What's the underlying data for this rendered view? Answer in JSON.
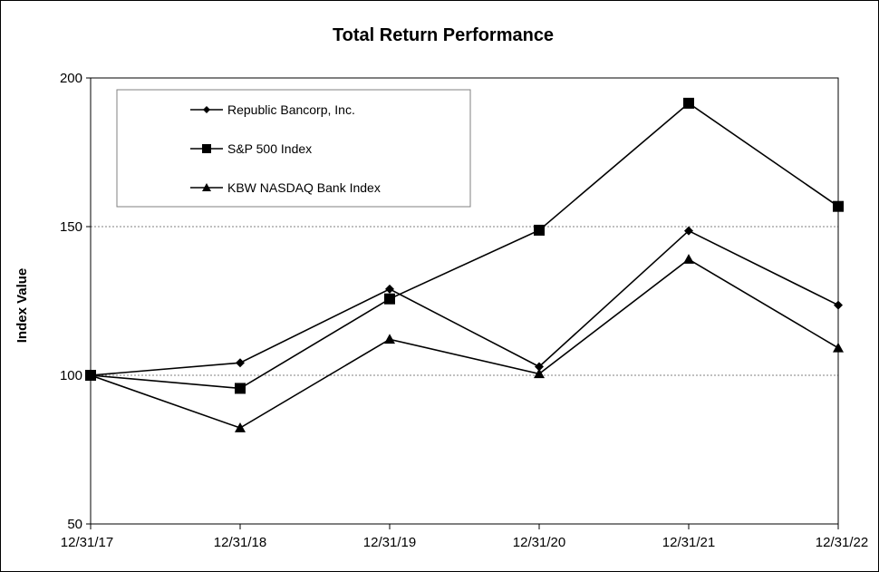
{
  "chart_data": {
    "type": "line",
    "title": "Total Return Performance",
    "xlabel": "",
    "ylabel": "Index Value",
    "categories": [
      "12/31/17",
      "12/31/18",
      "12/31/19",
      "12/31/20",
      "12/31/21",
      "12/31/22"
    ],
    "ylim": [
      50,
      200
    ],
    "yticks": [
      "50",
      "100",
      "150",
      "200"
    ],
    "grid": "horizontal dashed at 150",
    "legend_position": "top-left",
    "series": [
      {
        "name": "Republic Bancorp, Inc.",
        "marker": "diamond",
        "values": [
          100,
          104.2,
          129.0,
          102.9,
          148.6,
          123.6
        ]
      },
      {
        "name": "S&P 500 Index",
        "marker": "square",
        "values": [
          100,
          95.6,
          125.7,
          148.8,
          191.5,
          156.8
        ]
      },
      {
        "name": "KBW NASDAQ Bank Index",
        "marker": "triangle",
        "values": [
          100,
          82.3,
          112.1,
          100.5,
          139.0,
          109.2
        ]
      }
    ],
    "colors": {
      "line": "#000000",
      "grid": "#808080",
      "background": "#ffffff"
    }
  }
}
